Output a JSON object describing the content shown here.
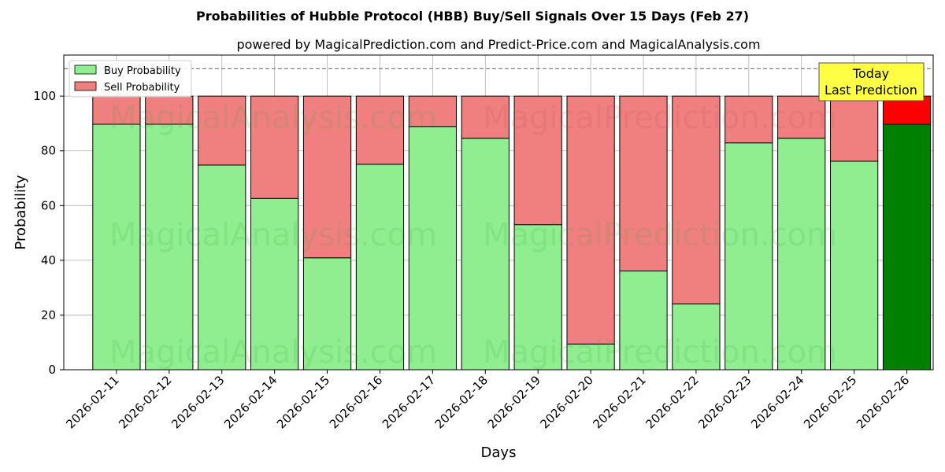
{
  "chart_data": {
    "type": "bar",
    "stacked": true,
    "title": "Probabilities of Hubble Protocol (HBB) Buy/Sell Signals Over 15 Days (Feb 27)",
    "subtitle": "powered by MagicalPrediction.com and Predict-Price.com and MagicalAnalysis.com",
    "xlabel": "Days",
    "ylabel": "Probability",
    "ylim": [
      0,
      115
    ],
    "yticks": [
      0,
      20,
      40,
      60,
      80,
      100
    ],
    "reference_line": 110,
    "grid": true,
    "legend_placement": "top-left",
    "categories": [
      "2026-02-11",
      "2026-02-12",
      "2026-02-13",
      "2026-02-14",
      "2026-02-15",
      "2026-02-16",
      "2026-02-17",
      "2026-02-18",
      "2026-02-19",
      "2026-02-20",
      "2026-02-21",
      "2026-02-22",
      "2026-02-23",
      "2026-02-24",
      "2026-02-25",
      "2026-02-26"
    ],
    "series": [
      {
        "name": "Buy Probability",
        "color": "#90ee90",
        "values": [
          89.7,
          89.7,
          74.8,
          62.6,
          40.9,
          75.1,
          88.9,
          84.6,
          53.0,
          9.4,
          36.1,
          24.1,
          82.9,
          84.6,
          76.2,
          89.7
        ]
      },
      {
        "name": "Sell Probability",
        "color": "#f08080",
        "values": [
          10.3,
          10.3,
          25.2,
          37.4,
          59.1,
          24.9,
          11.1,
          15.4,
          47.0,
          90.6,
          63.9,
          75.9,
          17.1,
          15.4,
          23.8,
          10.3
        ]
      }
    ],
    "highlight": {
      "index": 15,
      "buy_color": "#008000",
      "sell_color": "#ff0000"
    },
    "annotation": {
      "line1": "Today",
      "line2": "Last Prediction"
    },
    "watermarks": [
      "MagicalAnalysis.com",
      "MagicalPrediction.com"
    ]
  }
}
